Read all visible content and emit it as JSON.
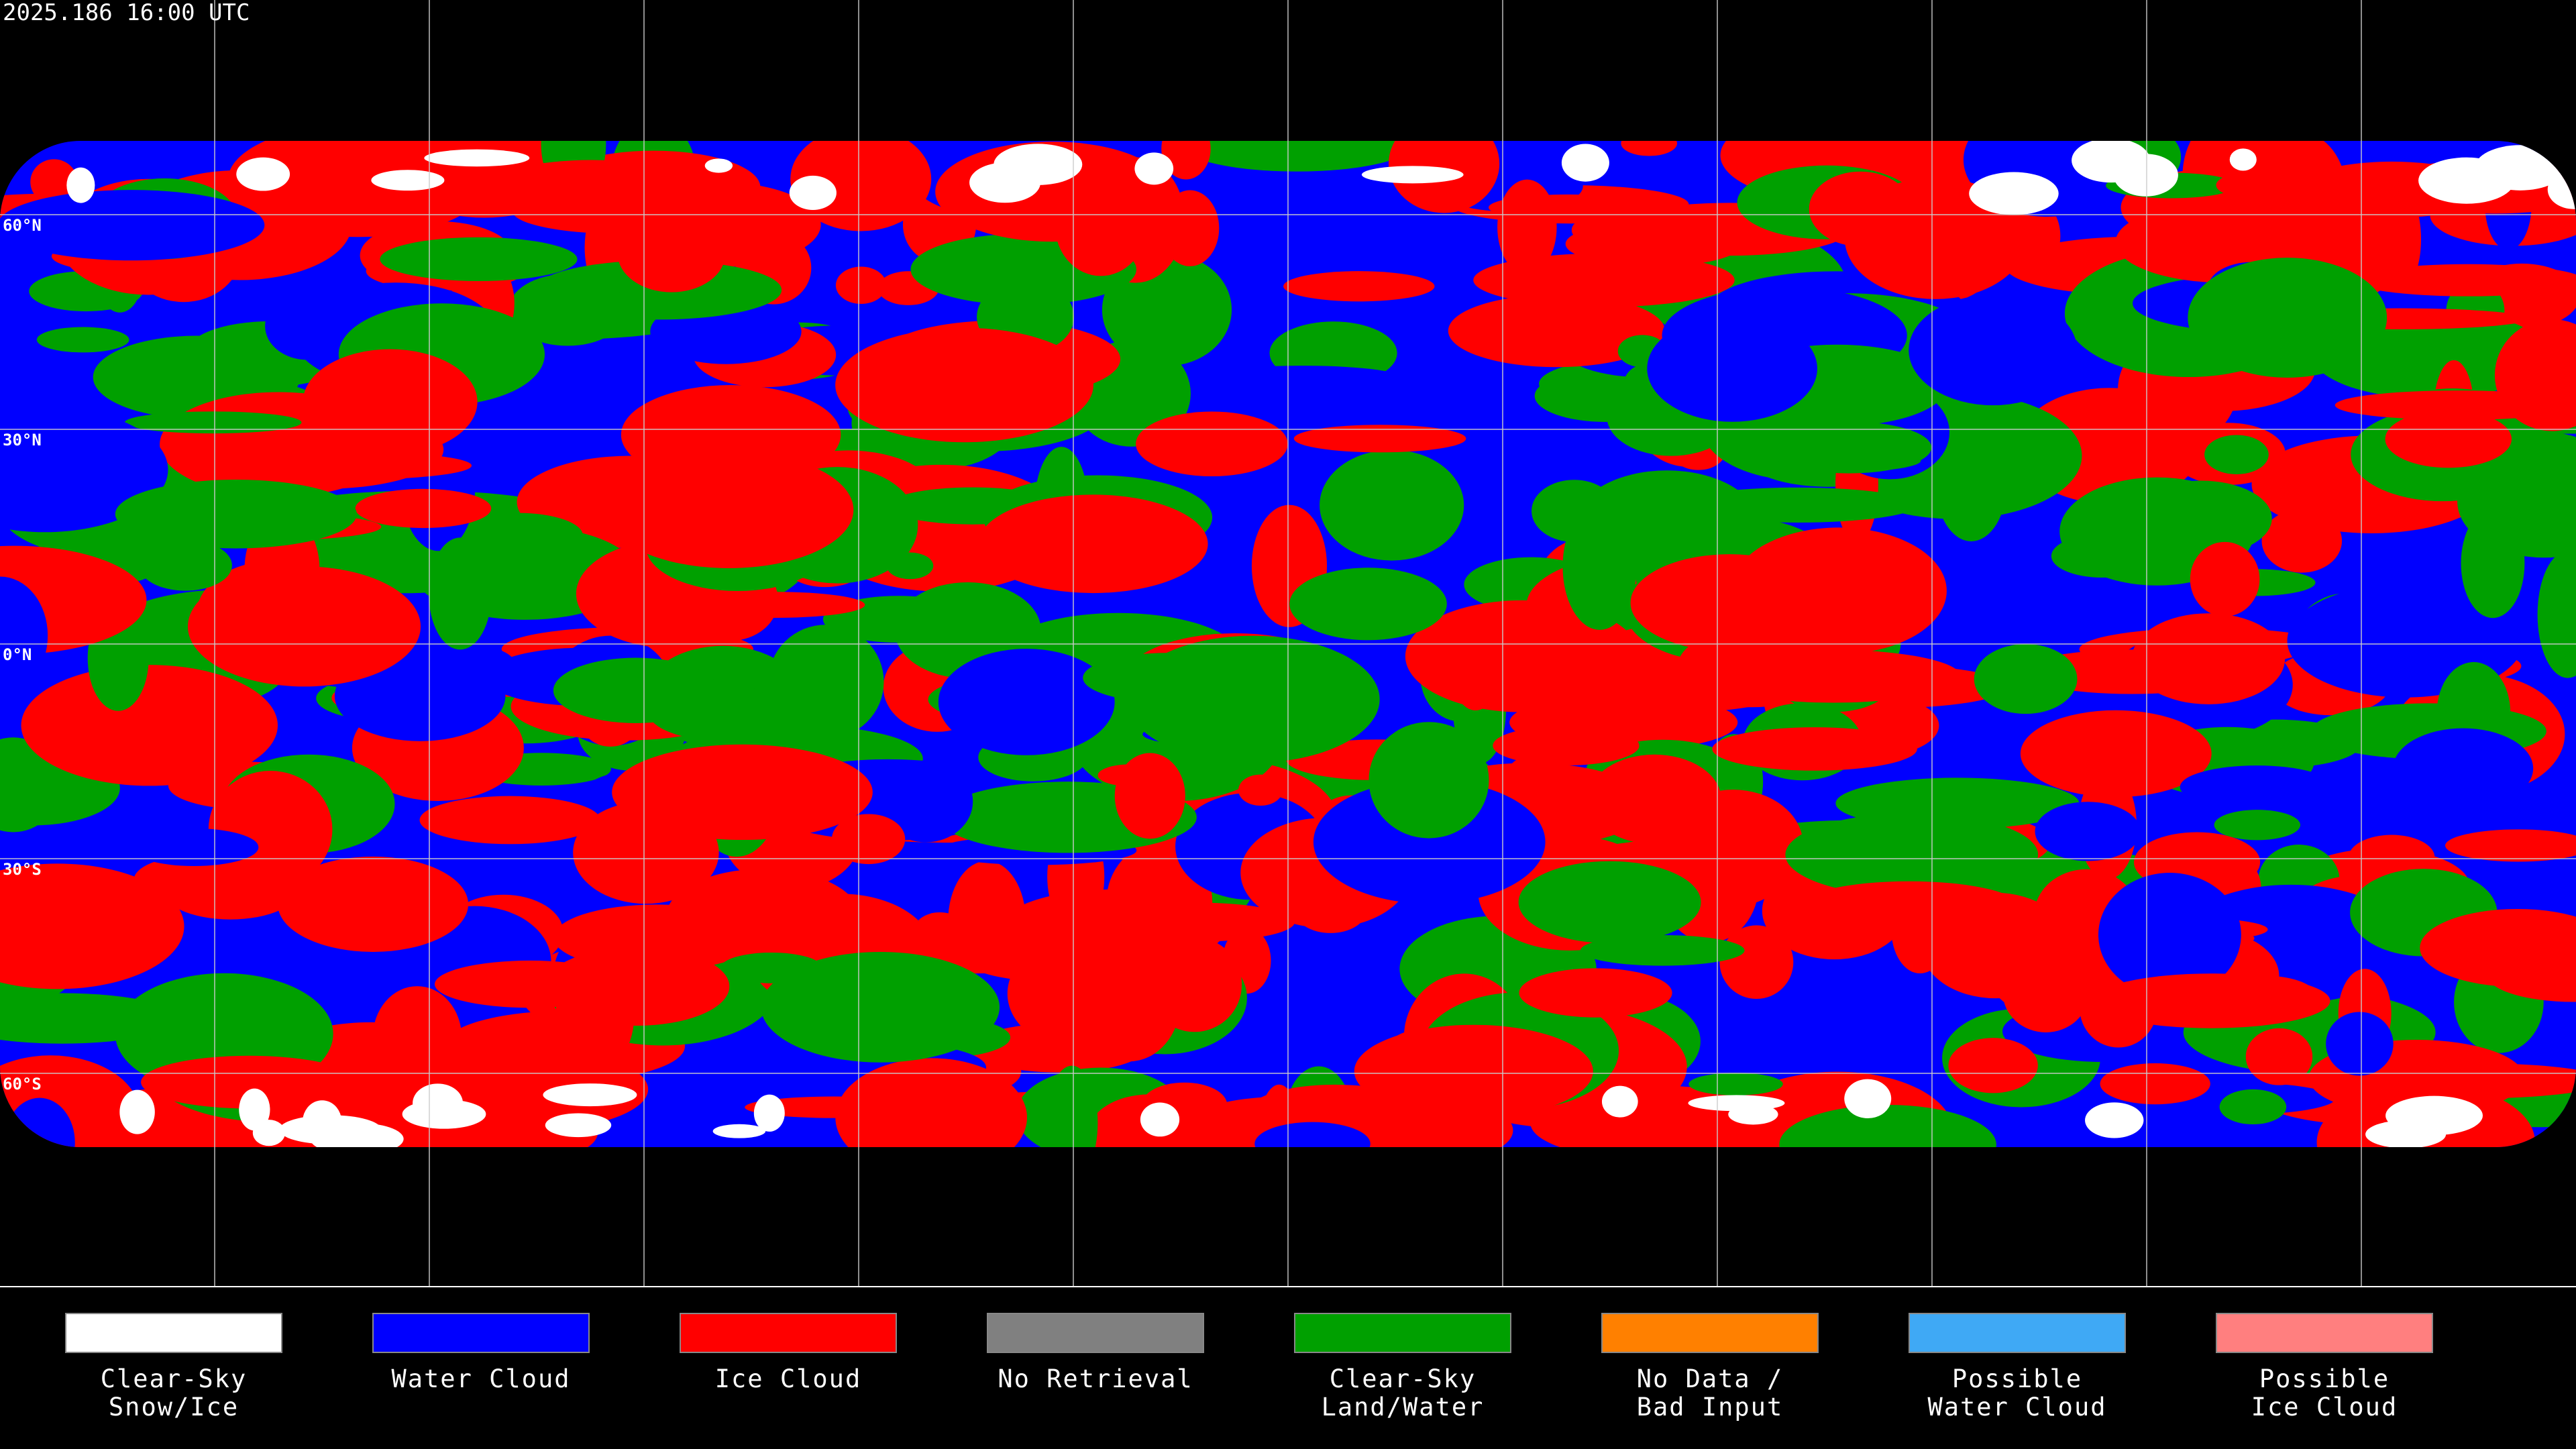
{
  "header": {
    "timestamp": "2025.186 16:00 UTC"
  },
  "map": {
    "lat_labels": [
      "60°N",
      "30°N",
      "0°N",
      "30°S",
      "60°S"
    ]
  },
  "legend": {
    "items": [
      {
        "lines": [
          "Clear-Sky",
          "Snow/Ice"
        ],
        "color": "#ffffff"
      },
      {
        "lines": [
          "Water Cloud"
        ],
        "color": "#0000ff"
      },
      {
        "lines": [
          "Ice Cloud"
        ],
        "color": "#ff0000"
      },
      {
        "lines": [
          "No Retrieval"
        ],
        "color": "#808080"
      },
      {
        "lines": [
          "Clear-Sky",
          "Land/Water"
        ],
        "color": "#00a000"
      },
      {
        "lines": [
          "No Data /",
          "Bad Input"
        ],
        "color": "#ff8000"
      },
      {
        "lines": [
          "Possible",
          "Water Cloud"
        ],
        "color": "#3fa9f5"
      },
      {
        "lines": [
          "Possible",
          "Ice Cloud"
        ],
        "color": "#ff7f7f"
      }
    ]
  }
}
